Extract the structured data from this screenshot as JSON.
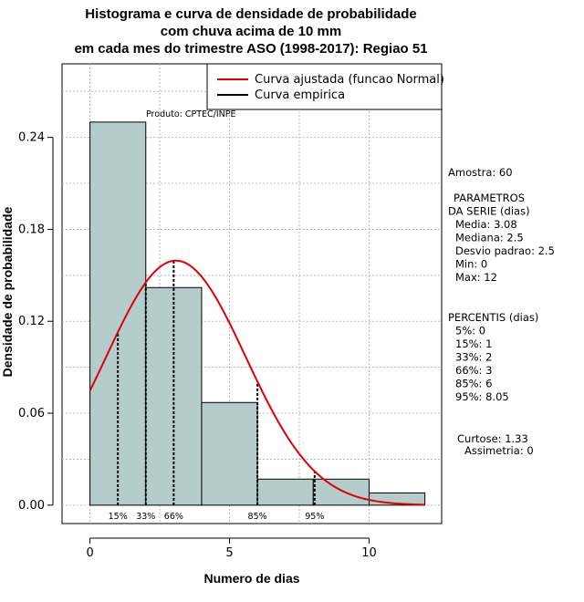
{
  "chart_data": {
    "type": "bar",
    "title_lines": [
      "Histograma e curva de densidade de probabilidade",
      "com chuva acima de 10 mm",
      "em cada mes do trimestre ASO (1998-2017): Regiao 51"
    ],
    "xlabel": "Numero de dias",
    "ylabel": "Densidade de probabilidade",
    "xlim": [
      -1,
      12.6
    ],
    "ylim": [
      -0.012,
      0.288
    ],
    "x_ticks": [
      0,
      5,
      10
    ],
    "y_ticks": [
      0.0,
      0.06,
      0.12,
      0.18,
      0.24
    ],
    "y_tick_labels": [
      "0.00",
      "0.06",
      "0.12",
      "0.18",
      "0.24"
    ],
    "bins": [
      {
        "start": 0,
        "end": 2,
        "density": 0.25
      },
      {
        "start": 2,
        "end": 4,
        "density": 0.142
      },
      {
        "start": 4,
        "end": 6,
        "density": 0.067
      },
      {
        "start": 6,
        "end": 8,
        "density": 0.017
      },
      {
        "start": 8,
        "end": 10,
        "density": 0.017
      },
      {
        "start": 10,
        "end": 12,
        "density": 0.008
      }
    ],
    "normal_fit": {
      "mean": 3.08,
      "sd": 2.5,
      "x_from": 0,
      "x_to": 12
    },
    "percentile_markers": [
      {
        "label": "15%",
        "x": 1
      },
      {
        "label": "33%",
        "x": 2
      },
      {
        "label": "66%",
        "x": 3
      },
      {
        "label": "85%",
        "x": 6
      },
      {
        "label": "95%",
        "x": 8.05
      }
    ],
    "legend": [
      {
        "label": "Curva ajustada (funcao Normal)",
        "color": "#e00000"
      },
      {
        "label": "Curva empirica",
        "color": "#000000"
      }
    ],
    "product_label": "Produto: CPTEC/INPE",
    "bar_color": "#b4cccc",
    "curve_color": "#e00000"
  },
  "side_panel": {
    "amostra": "Amostra: 60",
    "parametros_lines": [
      " PARAMETROS",
      "DA SERIE (dias)",
      "  Media: 3.08",
      "  Mediana: 2.5",
      "  Desvio padrao: 2.5",
      "  Min: 0",
      "  Max: 12"
    ],
    "percentis_lines": [
      "PERCENTIS (dias)",
      "  5%: 0",
      "  15%: 1",
      "  33%: 2",
      "  66%: 3",
      "  85%: 6",
      "  95%: 8.05"
    ],
    "curtose": "Curtose: 1.33",
    "assimetria": "Assimetria: 0"
  }
}
